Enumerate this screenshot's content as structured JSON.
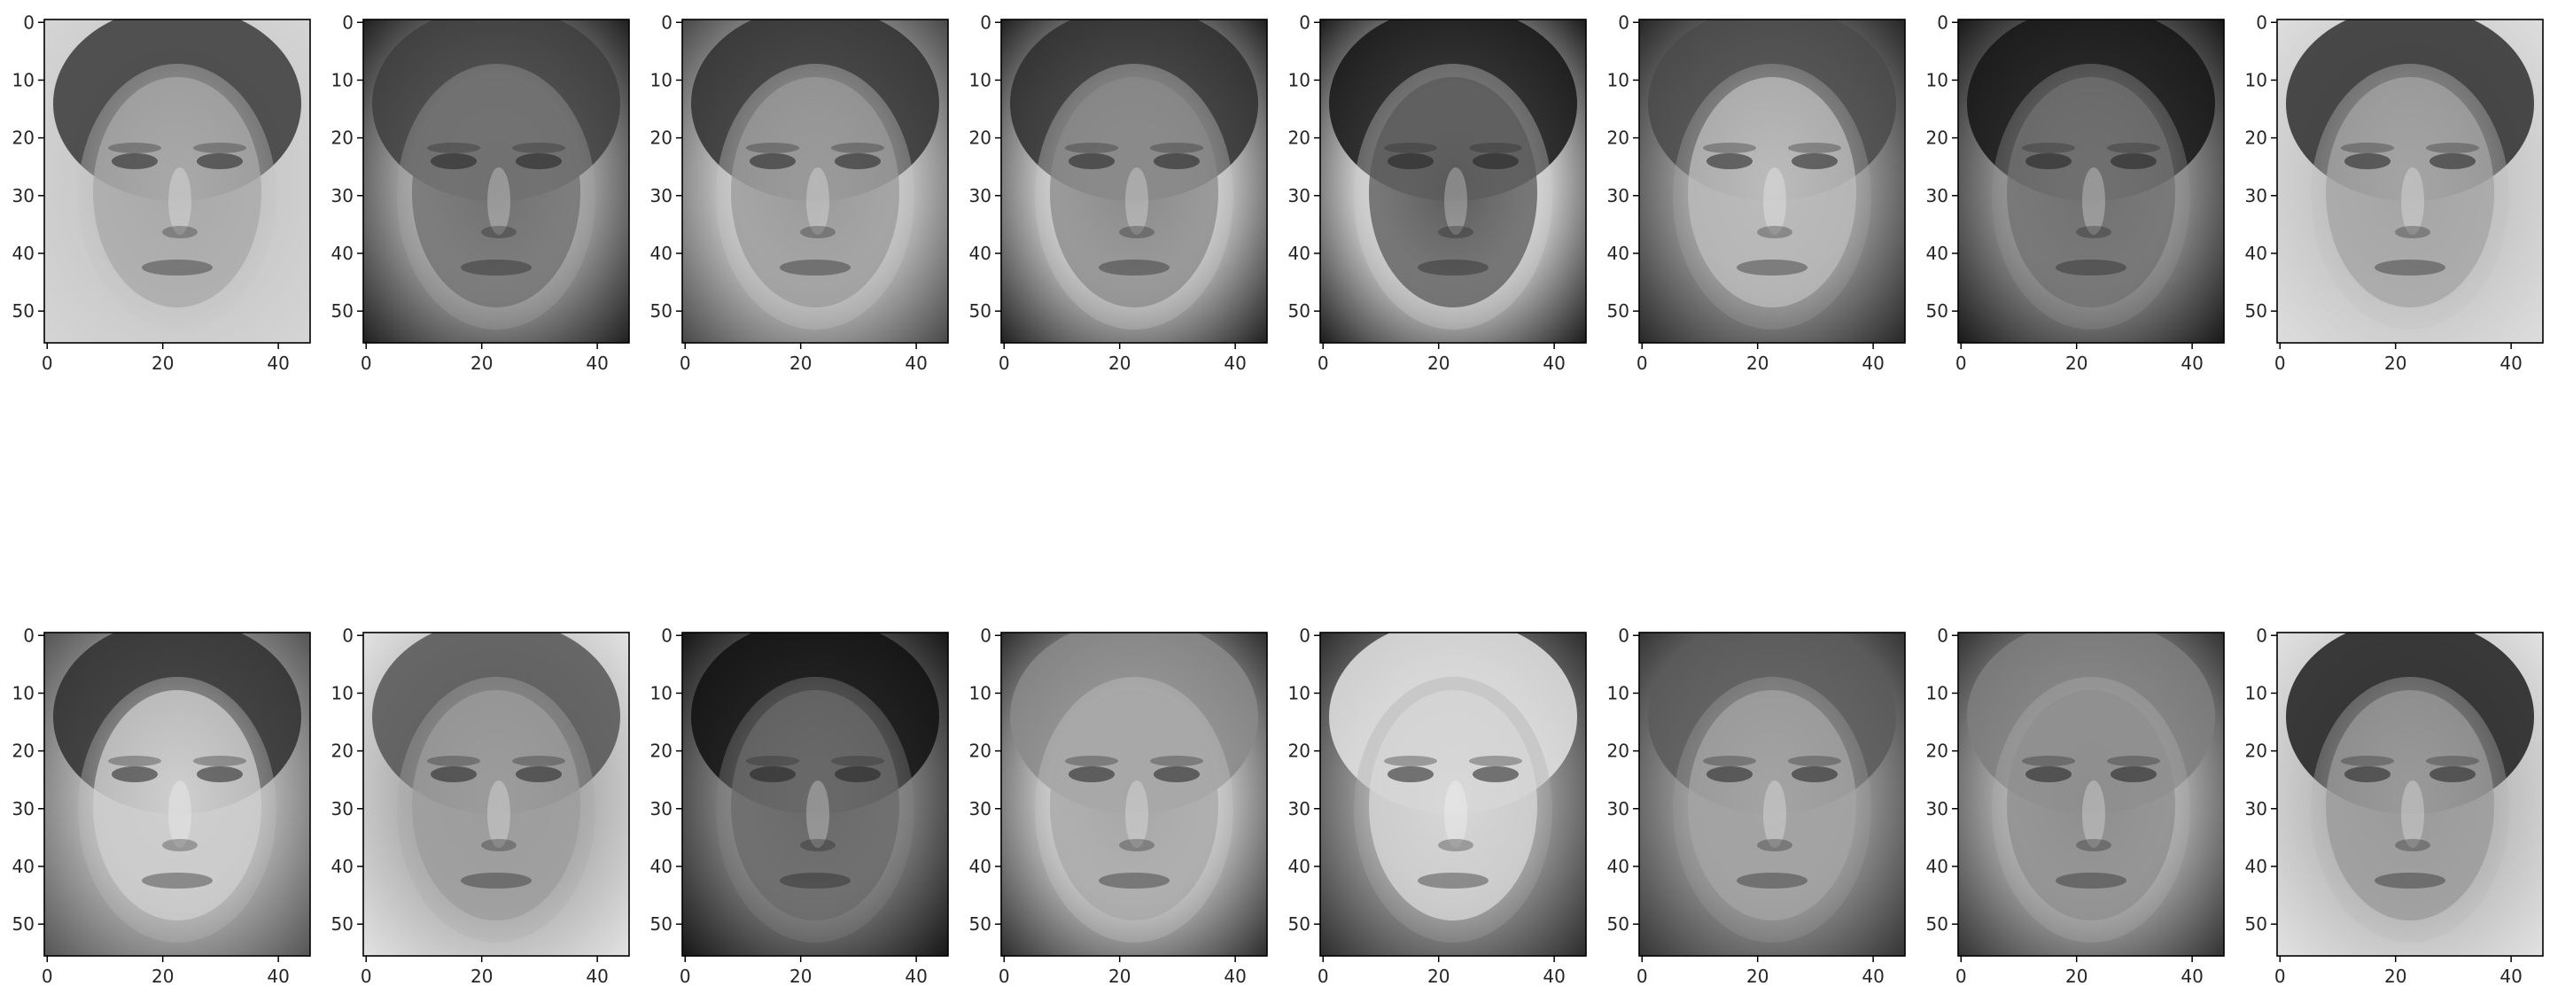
{
  "figure": {
    "colormap": "gray",
    "image_shape": {
      "rows": 56,
      "cols": 46
    },
    "x_ticks": [
      "0",
      "20",
      "40"
    ],
    "y_ticks": [
      "0",
      "10",
      "20",
      "30",
      "40",
      "50"
    ],
    "colors": {
      "axes_frame": "#000000",
      "tick_text": "#262626",
      "background": "#ffffff"
    }
  },
  "panels": [
    {
      "id": "r1c1",
      "content": "grayscale face image"
    },
    {
      "id": "r1c2",
      "content": "grayscale face image"
    },
    {
      "id": "r1c3",
      "content": "grayscale face image"
    },
    {
      "id": "r1c4",
      "content": "grayscale face image"
    },
    {
      "id": "r1c5",
      "content": "grayscale face image"
    },
    {
      "id": "r1c6",
      "content": "grayscale face image"
    },
    {
      "id": "r1c7",
      "content": "grayscale face image"
    },
    {
      "id": "r1c8",
      "content": "grayscale face image"
    },
    {
      "id": "r2c1",
      "content": "grayscale face image"
    },
    {
      "id": "r2c2",
      "content": "grayscale face image"
    },
    {
      "id": "r2c3",
      "content": "grayscale face image"
    },
    {
      "id": "r2c4",
      "content": "grayscale face image"
    },
    {
      "id": "r2c5",
      "content": "grayscale face image"
    },
    {
      "id": "r2c6",
      "content": "grayscale face image"
    },
    {
      "id": "r2c7",
      "content": "grayscale face image"
    },
    {
      "id": "r2c8",
      "content": "grayscale face image"
    }
  ]
}
